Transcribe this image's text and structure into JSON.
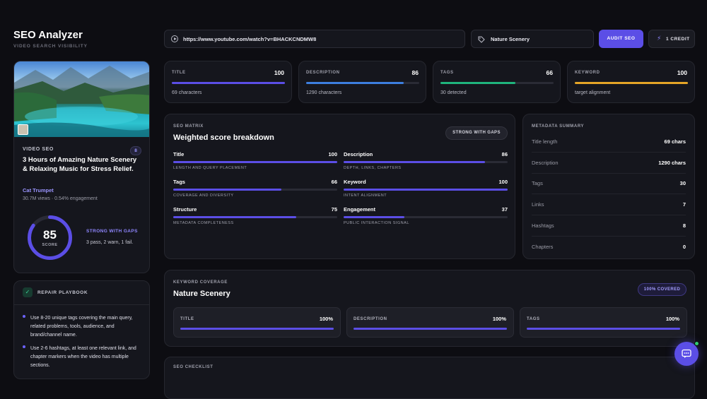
{
  "app": {
    "title": "SEO Analyzer",
    "subtitle": "VIDEO SEARCH VISIBILITY"
  },
  "search": {
    "url": "https://www.youtube.com/watch?v=BHACKCNDMW8",
    "keyword": "Nature Scenery",
    "audit_label": "AUDIT SEO",
    "credit_label": "1 CREDIT"
  },
  "video": {
    "tag": "VIDEO SEO",
    "badge": "8",
    "title": "3 Hours of Amazing Nature Scenery & Relaxing Music for Stress Relief.",
    "channel": "Cat Trumpet",
    "stats": "30.7M views · 0.54% engagement",
    "score": "85",
    "score_label": "SCORE",
    "score_pct": 85,
    "verdict": "STRONG WITH GAPS",
    "verdict_detail": "3 pass, 2 warn, 1 fail."
  },
  "playbook": {
    "title": "REPAIR PLAYBOOK",
    "items": [
      "Use 8-20 unique tags covering the main query, related problems, tools, audience, and brand/channel name.",
      "Use 2-6 hashtags, at least one relevant link, and chapter markers when the video has multiple sections."
    ]
  },
  "stats": [
    {
      "label": "TITLE",
      "value": "100",
      "pct": 100,
      "sub": "69 characters",
      "color": "#5b4ee6"
    },
    {
      "label": "DESCRIPTION",
      "value": "86",
      "pct": 86,
      "sub": "1290 characters",
      "color": "#3d7fe0"
    },
    {
      "label": "TAGS",
      "value": "66",
      "pct": 66,
      "sub": "30 detected",
      "color": "#1fb47d"
    },
    {
      "label": "KEYWORD",
      "value": "100",
      "pct": 100,
      "sub": "target alignment",
      "color": "#e5a527"
    }
  ],
  "matrix": {
    "label": "SEO MATRIX",
    "title": "Weighted score breakdown",
    "badge": "STRONG WITH GAPS",
    "items": [
      {
        "name": "Title",
        "value": "100",
        "pct": 100,
        "sub": "LENGTH AND QUERY PLACEMENT"
      },
      {
        "name": "Description",
        "value": "86",
        "pct": 86,
        "sub": "DEPTH, LINKS, CHAPTERS"
      },
      {
        "name": "Tags",
        "value": "66",
        "pct": 66,
        "sub": "COVERAGE AND DIVERSITY"
      },
      {
        "name": "Keyword",
        "value": "100",
        "pct": 100,
        "sub": "INTENT ALIGNMENT"
      },
      {
        "name": "Structure",
        "value": "75",
        "pct": 75,
        "sub": "METADATA COMPLETENESS"
      },
      {
        "name": "Engagement",
        "value": "37",
        "pct": 37,
        "sub": "PUBLIC INTERACTION SIGNAL"
      }
    ]
  },
  "summary": {
    "title": "METADATA SUMMARY",
    "rows": [
      {
        "k": "Title length",
        "v": "69 chars"
      },
      {
        "k": "Description",
        "v": "1290 chars"
      },
      {
        "k": "Tags",
        "v": "30"
      },
      {
        "k": "Links",
        "v": "7"
      },
      {
        "k": "Hashtags",
        "v": "8"
      },
      {
        "k": "Chapters",
        "v": "0"
      }
    ]
  },
  "coverage": {
    "label": "KEYWORD COVERAGE",
    "title": "Nature Scenery",
    "badge": "100% COVERED",
    "items": [
      {
        "name": "TITLE",
        "value": "100%",
        "pct": 100
      },
      {
        "name": "DESCRIPTION",
        "value": "100%",
        "pct": 100
      },
      {
        "name": "TAGS",
        "value": "100%",
        "pct": 100
      }
    ]
  },
  "checklist": {
    "label": "SEO CHECKLIST"
  },
  "colors": {
    "accent": "#5b4ee6",
    "bg": "#0d0d12",
    "card": "#15161d"
  }
}
